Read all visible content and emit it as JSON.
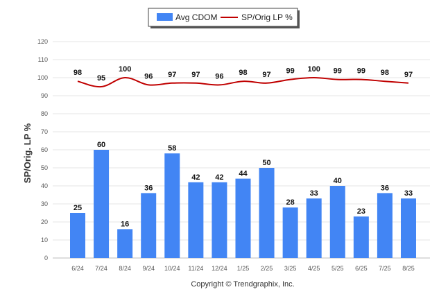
{
  "chart_data": {
    "type": "bar",
    "categories": [
      "6/24",
      "7/24",
      "8/24",
      "9/24",
      "10/24",
      "11/24",
      "12/24",
      "1/25",
      "2/25",
      "3/25",
      "4/25",
      "5/25",
      "6/25",
      "7/25",
      "8/25"
    ],
    "series": [
      {
        "name": "Avg CDOM",
        "type": "bar",
        "values": [
          25,
          60,
          16,
          36,
          58,
          42,
          42,
          44,
          50,
          28,
          33,
          40,
          23,
          36,
          33
        ]
      },
      {
        "name": "SP/Orig LP %",
        "type": "line",
        "values": [
          98,
          95,
          100,
          96,
          97,
          97,
          96,
          98,
          97,
          99,
          100,
          99,
          99,
          98,
          97
        ]
      }
    ],
    "ylabel": "SP/Orig. LP %",
    "xlabel": "",
    "ylim": [
      0,
      120
    ],
    "yticks": [
      0,
      10,
      20,
      30,
      40,
      50,
      60,
      70,
      80,
      90,
      100,
      110,
      120
    ],
    "grid": true,
    "legend_position": "top-center"
  },
  "colors": {
    "bar": "#4285f4",
    "line": "#c00000",
    "grid": "#e6e6e6"
  },
  "footer": {
    "copyright": "Copyright © Trendgraphix, Inc."
  }
}
